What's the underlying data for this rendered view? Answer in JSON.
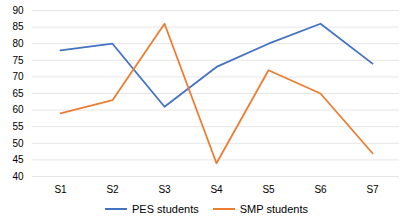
{
  "chart_data": {
    "type": "line",
    "categories": [
      "S1",
      "S2",
      "S3",
      "S4",
      "S5",
      "S6",
      "S7"
    ],
    "series": [
      {
        "name": "PES students",
        "color": "#4472c4",
        "values": [
          78,
          80,
          61,
          73,
          80,
          86,
          74
        ]
      },
      {
        "name": "SMP students",
        "color": "#ed7d31",
        "values": [
          59,
          63,
          86,
          44,
          72,
          65,
          47
        ]
      }
    ],
    "ylim": [
      40,
      90
    ],
    "yticks": [
      40,
      45,
      50,
      55,
      60,
      65,
      70,
      75,
      80,
      85,
      90
    ],
    "grid": true,
    "legend": "bottom"
  }
}
